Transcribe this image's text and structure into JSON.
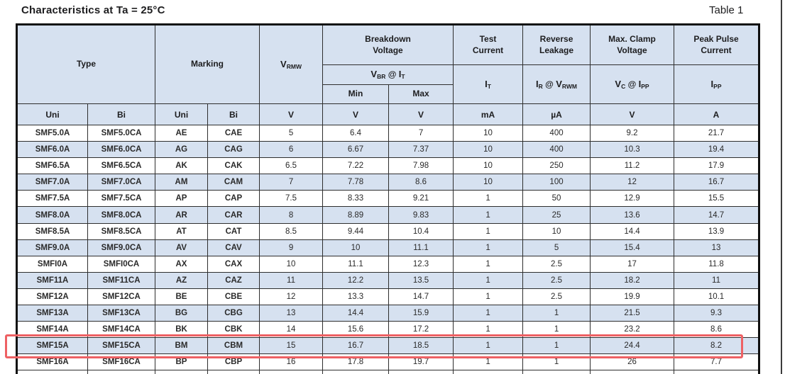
{
  "page": {
    "title": "Characteristics at Ta = 25°C",
    "table_label": "Table 1"
  },
  "header": {
    "type": "Type",
    "marking": "Marking",
    "v_rmw": {
      "base": "V",
      "sub": "RMW"
    },
    "breakdown": {
      "l1": "Breakdown",
      "l2": "Voltage"
    },
    "test_current": {
      "l1": "Test",
      "l2": "Current"
    },
    "reverse_leakage": {
      "l1": "Reverse",
      "l2": "Leakage"
    },
    "max_clamp": {
      "l1": "Max. Clamp",
      "l2": "Voltage"
    },
    "peak_pulse": {
      "l1": "Peak Pulse",
      "l2": "Current"
    },
    "vbr_at_it": {
      "v": "V",
      "vsub": "BR",
      "at": "@",
      "i": "I",
      "isub": "T"
    },
    "min": "Min",
    "max": "Max",
    "i_t": {
      "base": "I",
      "sub": "T"
    },
    "ir_at_vrwm": {
      "i": "I",
      "isub": "R",
      "at": "@",
      "v": "V",
      "vsub": "RWM"
    },
    "vc_at_ipp": {
      "v": "V",
      "vsub": "C",
      "at": "@",
      "i": "I",
      "isub": "PP"
    },
    "i_pp": {
      "base": "I",
      "sub": "PP"
    }
  },
  "units": [
    "Uni",
    "Bi",
    "Uni",
    "Bi",
    "V",
    "V",
    "V",
    "mA",
    "µA",
    "V",
    "A"
  ],
  "columns": [
    "type_uni",
    "type_bi",
    "marking_uni",
    "marking_bi",
    "v_rmw",
    "vbr_min",
    "vbr_max",
    "i_t",
    "i_r",
    "v_c",
    "i_pp"
  ],
  "rows": [
    [
      "SMF5.0A",
      "SMF5.0CA",
      "AE",
      "CAE",
      "5",
      "6.4",
      "7",
      "10",
      "400",
      "9.2",
      "21.7"
    ],
    [
      "SMF6.0A",
      "SMF6.0CA",
      "AG",
      "CAG",
      "6",
      "6.67",
      "7.37",
      "10",
      "400",
      "10.3",
      "19.4"
    ],
    [
      "SMF6.5A",
      "SMF6.5CA",
      "AK",
      "CAK",
      "6.5",
      "7.22",
      "7.98",
      "10",
      "250",
      "11.2",
      "17.9"
    ],
    [
      "SMF7.0A",
      "SMF7.0CA",
      "AM",
      "CAM",
      "7",
      "7.78",
      "8.6",
      "10",
      "100",
      "12",
      "16.7"
    ],
    [
      "SMF7.5A",
      "SMF7.5CA",
      "AP",
      "CAP",
      "7.5",
      "8.33",
      "9.21",
      "1",
      "50",
      "12.9",
      "15.5"
    ],
    [
      "SMF8.0A",
      "SMF8.0CA",
      "AR",
      "CAR",
      "8",
      "8.89",
      "9.83",
      "1",
      "25",
      "13.6",
      "14.7"
    ],
    [
      "SMF8.5A",
      "SMF8.5CA",
      "AT",
      "CAT",
      "8.5",
      "9.44",
      "10.4",
      "1",
      "10",
      "14.4",
      "13.9"
    ],
    [
      "SMF9.0A",
      "SMF9.0CA",
      "AV",
      "CAV",
      "9",
      "10",
      "11.1",
      "1",
      "5",
      "15.4",
      "13"
    ],
    [
      "SMFI0A",
      "SMFI0CA",
      "AX",
      "CAX",
      "10",
      "11.1",
      "12.3",
      "1",
      "2.5",
      "17",
      "11.8"
    ],
    [
      "SMF11A",
      "SMF11CA",
      "AZ",
      "CAZ",
      "11",
      "12.2",
      "13.5",
      "1",
      "2.5",
      "18.2",
      "11"
    ],
    [
      "SMF12A",
      "SMF12CA",
      "BE",
      "CBE",
      "12",
      "13.3",
      "14.7",
      "1",
      "2.5",
      "19.9",
      "10.1"
    ],
    [
      "SMF13A",
      "SMF13CA",
      "BG",
      "CBG",
      "13",
      "14.4",
      "15.9",
      "1",
      "1",
      "21.5",
      "9.3"
    ],
    [
      "SMF14A",
      "SMF14CA",
      "BK",
      "CBK",
      "14",
      "15.6",
      "17.2",
      "1",
      "1",
      "23.2",
      "8.6"
    ],
    [
      "SMF15A",
      "SMF15CA",
      "BM",
      "CBM",
      "15",
      "16.7",
      "18.5",
      "1",
      "1",
      "24.4",
      "8.2"
    ],
    [
      "SMF16A",
      "SMF16CA",
      "BP",
      "CBP",
      "16",
      "17.8",
      "19.7",
      "1",
      "1",
      "26",
      "7.7"
    ]
  ],
  "highlighted_row": "SMF15A",
  "highlighted_row_index": 13,
  "colors": {
    "stripe_bg": "#d6e1f0",
    "highlight_border": "#ee6164",
    "border": "#2e2e2e"
  }
}
